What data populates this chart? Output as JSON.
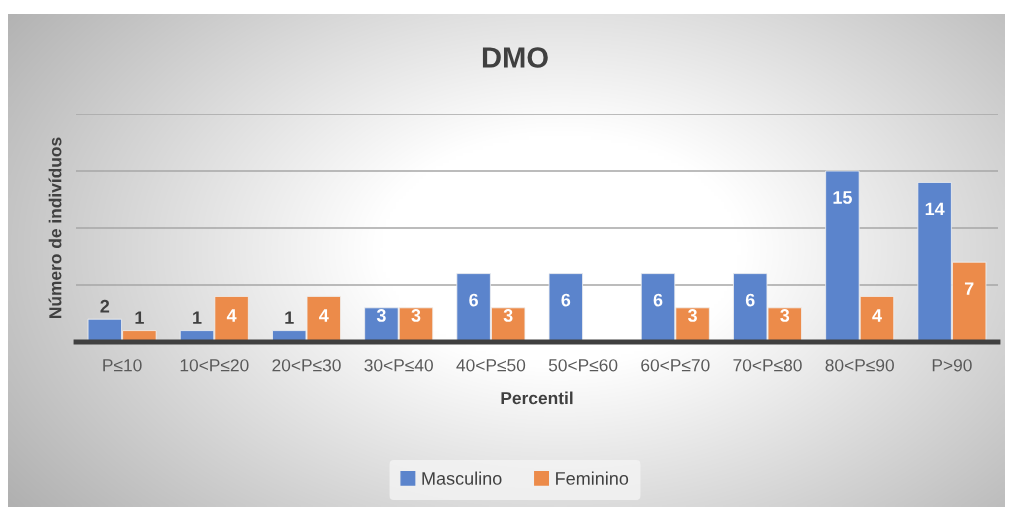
{
  "chart_data": {
    "type": "bar",
    "title": "DMO",
    "xlabel": "Percentil",
    "ylabel": "Número de indivíduos",
    "categories": [
      "P≤10",
      "10<P≤20",
      "20<P≤30",
      "30<P≤40",
      "40<P≤50",
      "50<P≤60",
      "60<P≤70",
      "70<P≤80",
      "80<P≤90",
      "P>90"
    ],
    "series": [
      {
        "name": "Masculino",
        "color": "#5b84cc",
        "values": [
          2,
          1,
          1,
          3,
          6,
          6,
          6,
          6,
          15,
          14
        ]
      },
      {
        "name": "Feminino",
        "color": "#ec8b4a",
        "values": [
          1,
          4,
          4,
          3,
          3,
          null,
          3,
          3,
          4,
          7
        ]
      }
    ],
    "ylim": [
      0,
      20
    ],
    "yticks": [
      {
        "value": 0,
        "label": null
      },
      {
        "value": 5,
        "label": null
      },
      {
        "value": 10,
        "label": null
      },
      {
        "value": 15,
        "label": null
      },
      {
        "value": 20,
        "label": null
      }
    ],
    "tick_labels": "x",
    "grid": "y",
    "legend": "bottom",
    "data_labels": true
  }
}
